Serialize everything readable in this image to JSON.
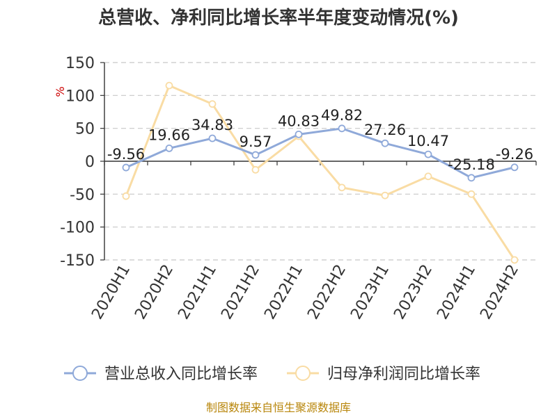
{
  "chart_data": {
    "type": "line",
    "title": "总营收、净利同比增长率半年度变动情况(%)",
    "ylabel": "%",
    "categories": [
      "2020H1",
      "2020H2",
      "2021H1",
      "2021H2",
      "2022H1",
      "2022H2",
      "2023H1",
      "2023H2",
      "2024H1",
      "2024H2"
    ],
    "ylim": [
      -150,
      150
    ],
    "yticks": [
      150,
      100,
      50,
      0,
      -50,
      -100,
      -150
    ],
    "grid": true,
    "legend_position": "bottom",
    "series": [
      {
        "name": "营业总收入同比增长率",
        "color": "#8fa9d9",
        "values": [
          -9.56,
          19.66,
          34.83,
          9.57,
          40.83,
          49.82,
          27.26,
          10.47,
          -25.18,
          -9.26
        ],
        "labels": [
          "-9.56",
          "19.66",
          "34.83",
          "9.57",
          "40.83",
          "49.82",
          "27.26",
          "10.47",
          "-25.18",
          "-9.26"
        ]
      },
      {
        "name": "归母净利润同比增长率",
        "color": "#f9dca4",
        "values": [
          -53,
          115,
          87,
          -13,
          38,
          -40,
          -52,
          -23,
          -50,
          -150
        ]
      }
    ]
  },
  "source": "制图数据来自恒生聚源数据库"
}
